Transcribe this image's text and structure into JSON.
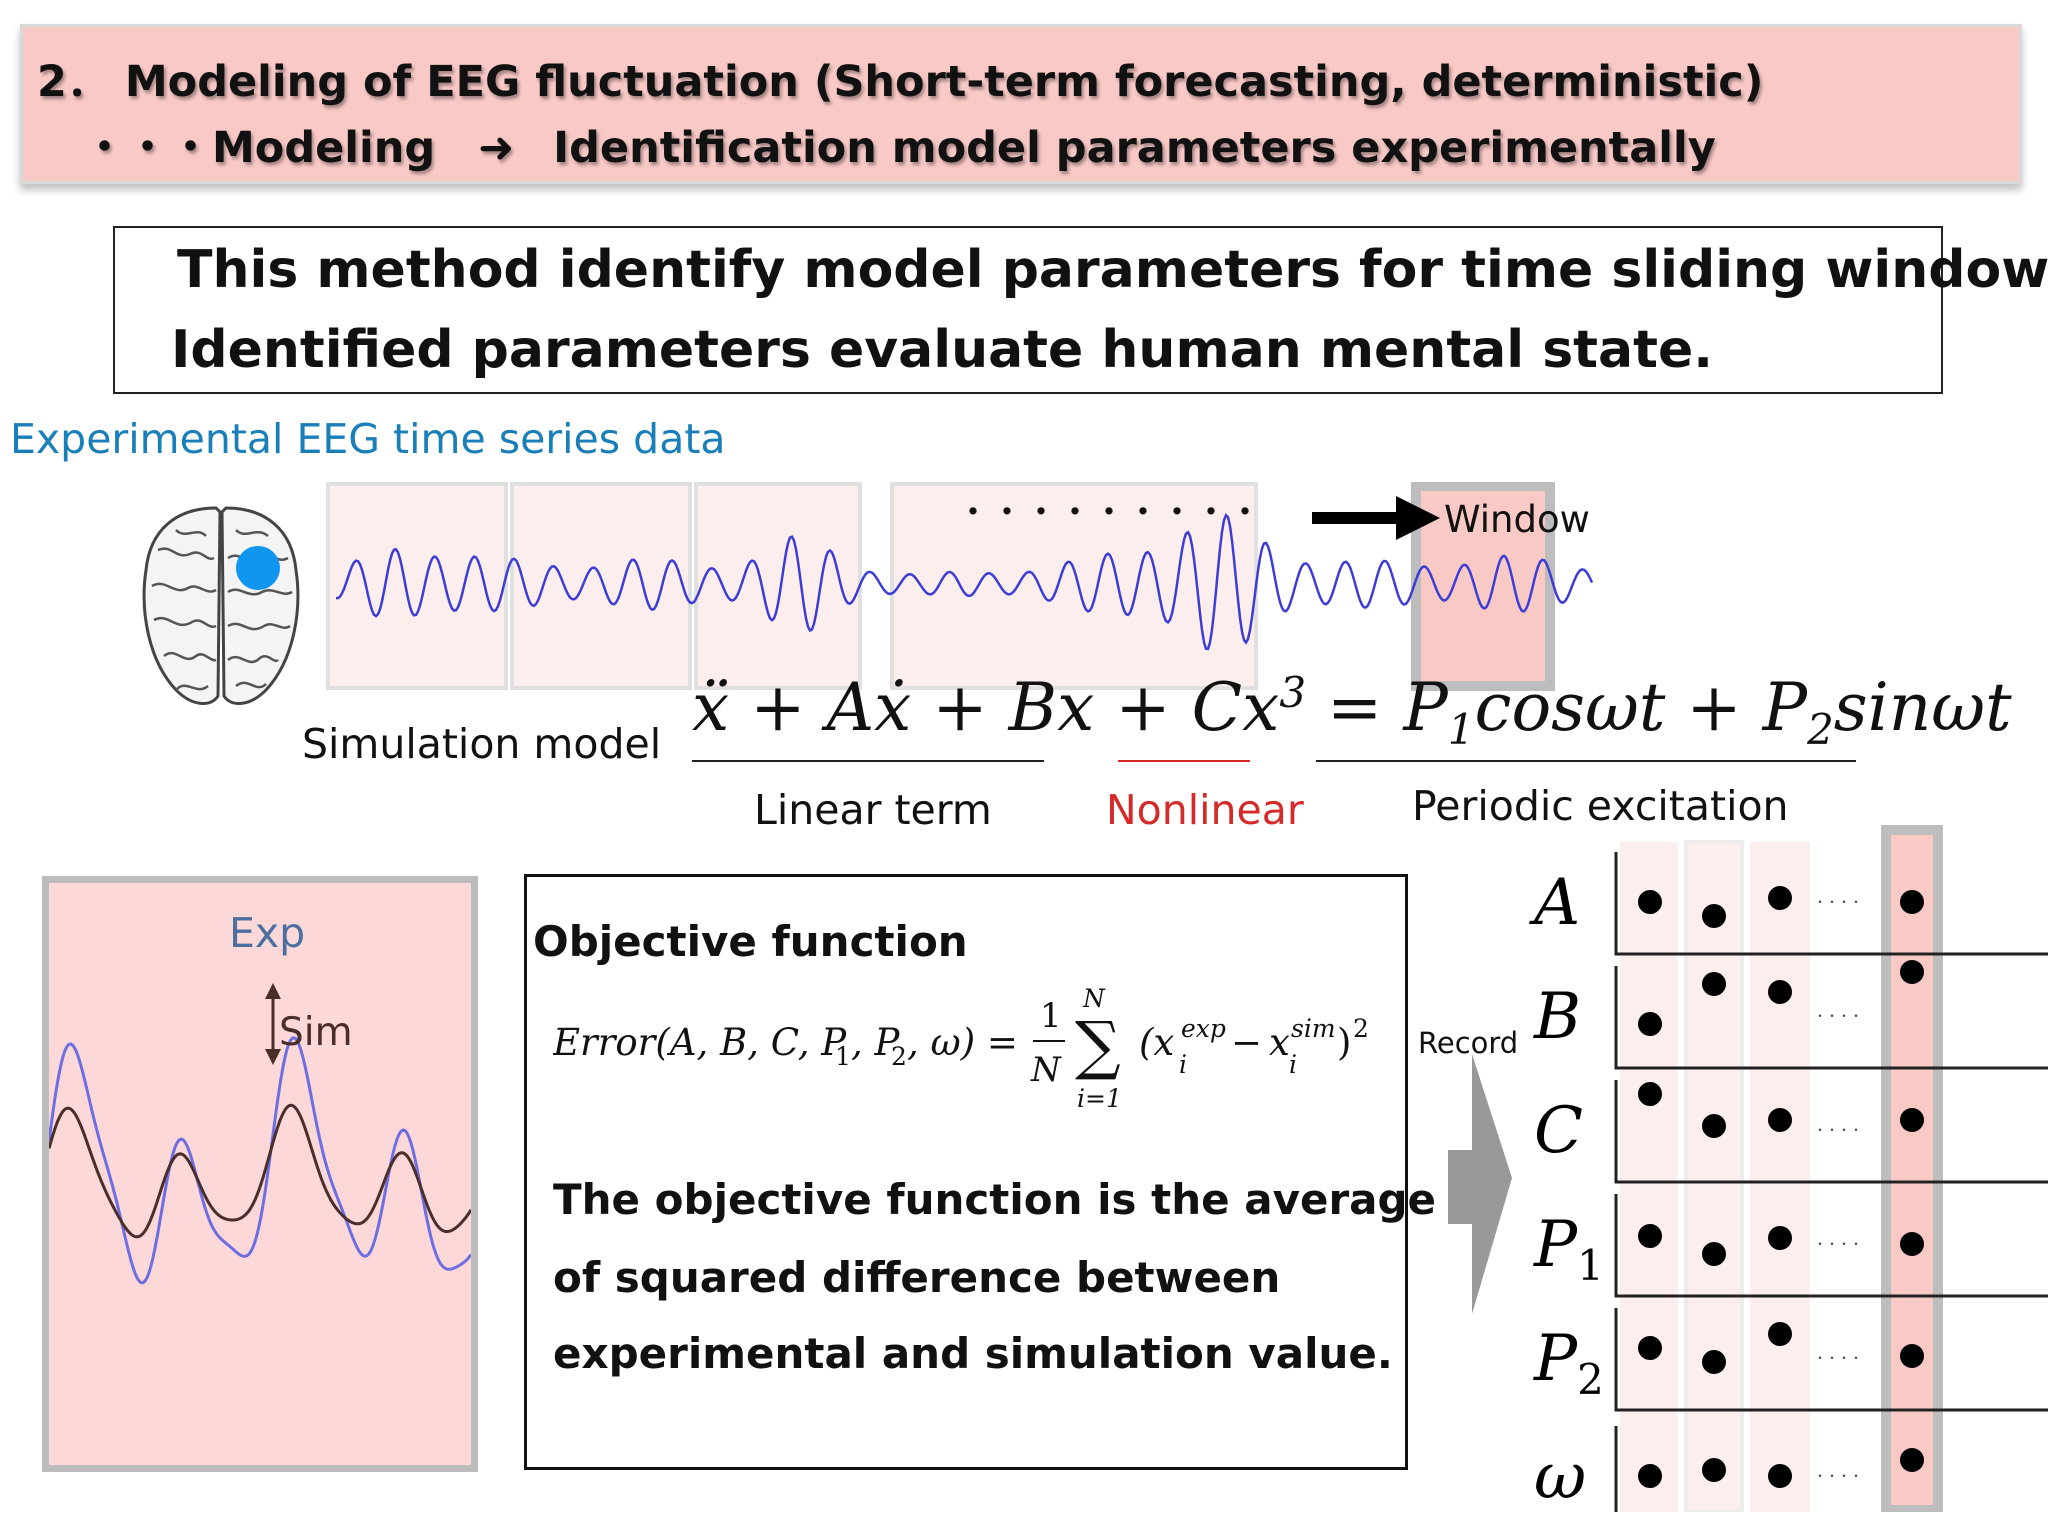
{
  "header": {
    "line1": "2．  Modeling of EEG fluctuation (Short-term forecasting, deterministic)",
    "line2_prefix": "・・・Modeling",
    "line2_arrow": "➜",
    "line2_suffix": "Identification model parameters experimentally"
  },
  "intro": {
    "line1": "This method identify model parameters for time sliding window.",
    "line2": "Identified parameters evaluate human mental state."
  },
  "eeg": {
    "label": "Experimental EEG time series data",
    "dots": "・・・・・・・・・",
    "window_label": "Window"
  },
  "model": {
    "label": "Simulation model",
    "term_linear": "Linear term",
    "term_nonlinear": "Nonlinear",
    "term_periodic": "Periodic excitation"
  },
  "exp_panel": {
    "exp_label": "Exp",
    "sim_label": "Sim"
  },
  "objective": {
    "title": "Objective function",
    "desc1": "The objective function is the average",
    "desc2": "of squared difference between",
    "desc3": "experimental and simulation value."
  },
  "record_label": "Record",
  "params": [
    "A",
    "B",
    "C",
    "P1",
    "P2",
    "ω"
  ],
  "ellipsis": "・・・・",
  "colors": {
    "banner_bg": "#f9c9c6",
    "panel_pink": "#fcd9d8",
    "eeg_blue": "#3d3dd6",
    "accent_blue": "#1a7fb8",
    "marker_blue": "#1196f0",
    "nonlinear_red": "#d42a2a",
    "sim_brown": "#4a2e2a",
    "exp_blue": "#6f6ee0",
    "border_gray": "#bdbdbd"
  }
}
